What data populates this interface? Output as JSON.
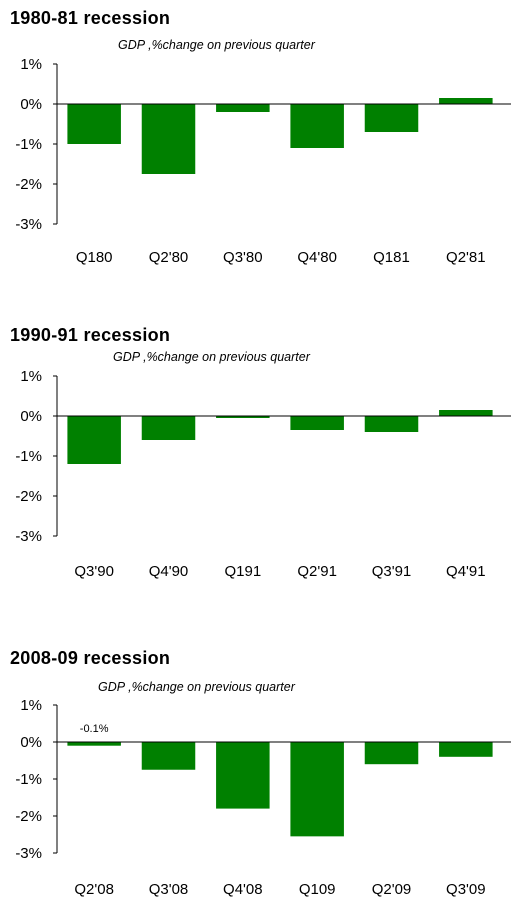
{
  "colors": {
    "bar": "#008000",
    "axis": "#000000"
  },
  "chart_data": [
    {
      "type": "bar",
      "title": "1980-81 recession",
      "subtitle": "GDP ,%change on previous quarter",
      "categories": [
        "Q180",
        "Q2'80",
        "Q3'80",
        "Q4'80",
        "Q181",
        "Q2'81"
      ],
      "values": [
        -1.0,
        -1.75,
        -0.2,
        -1.1,
        -0.7,
        0.15
      ],
      "yticks": [
        "1%",
        "0%",
        "-1%",
        "-2%",
        "-3%"
      ],
      "ytick_values": [
        1,
        0,
        -1,
        -2,
        -3
      ],
      "ylim": [
        -3,
        1
      ],
      "data_labels": [],
      "grid": false
    },
    {
      "type": "bar",
      "title": "1990-91 recession",
      "subtitle": "GDP ,%change on previous quarter",
      "categories": [
        "Q3'90",
        "Q4'90",
        "Q191",
        "Q2'91",
        "Q3'91",
        "Q4'91"
      ],
      "values": [
        -1.2,
        -0.6,
        -0.05,
        -0.35,
        -0.4,
        0.15
      ],
      "yticks": [
        "1%",
        "0%",
        "-1%",
        "-2%",
        "-3%"
      ],
      "ytick_values": [
        1,
        0,
        -1,
        -2,
        -3
      ],
      "ylim": [
        -3,
        1
      ],
      "data_labels": [],
      "grid": false
    },
    {
      "type": "bar",
      "title": "2008-09 recession",
      "subtitle": "GDP ,%change on previous quarter",
      "categories": [
        "Q2'08",
        "Q3'08",
        "Q4'08",
        "Q109",
        "Q2'09",
        "Q3'09"
      ],
      "values": [
        -0.1,
        -0.75,
        -1.8,
        -2.55,
        -0.6,
        -0.4
      ],
      "yticks": [
        "1%",
        "0%",
        "-1%",
        "-2%",
        "-3%"
      ],
      "ytick_values": [
        1,
        0,
        -1,
        -2,
        -3
      ],
      "ylim": [
        -3,
        1
      ],
      "data_labels": [
        {
          "index": 0,
          "text": "-0.1%"
        }
      ],
      "grid": false
    }
  ]
}
